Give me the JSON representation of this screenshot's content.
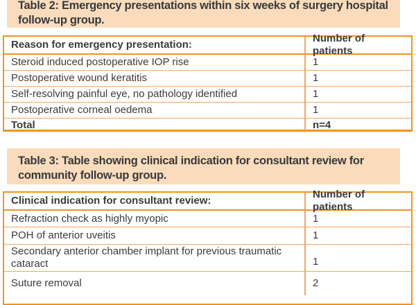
{
  "colors": {
    "caption_background": "#fadcbc",
    "table_border_orange": "#f5911e",
    "row_divider_orange": "#f7a55f",
    "text": "#3b3b3d"
  },
  "table2": {
    "caption": "Table 2: Emergency presentations within six weeks of surgery hospital follow-up group.",
    "caption_lines": [
      "Table 2: Emergency presentations within six weeks of surgery hospital",
      "follow-up group."
    ],
    "headers": [
      "Reason for emergency presentation:",
      "Number of patients"
    ],
    "rows": [
      [
        "Steroid induced postoperative IOP rise",
        "1"
      ],
      [
        "Postoperative wound keratitis",
        "1"
      ],
      [
        "Self-resolving painful eye, no pathology identified",
        "1"
      ],
      [
        "Postoperative corneal oedema",
        "1"
      ]
    ],
    "total_row": [
      "Total",
      "n=4"
    ]
  },
  "table3": {
    "caption": "Table 3: Table showing clinical indication for consultant review for community follow-up group.",
    "caption_lines": [
      "Table 3: Table showing clinical indication for consultant review for",
      "community follow-up group."
    ],
    "headers": [
      "Clinical indication for consultant review:",
      "Number of patients"
    ],
    "rows": [
      [
        "Refraction check as highly myopic",
        "1"
      ],
      [
        "POH of anterior uveitis",
        "1"
      ],
      [
        "Secondary anterior chamber implant for previous traumatic cataract",
        "1"
      ],
      [
        "Suture removal",
        "2"
      ]
    ]
  }
}
